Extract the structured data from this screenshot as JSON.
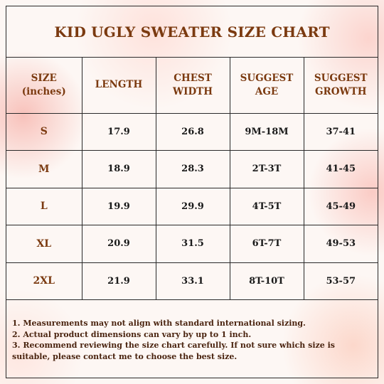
{
  "title": "KID UGLY SWEATER SIZE CHART",
  "header": {
    "size": [
      "SIZE",
      "(inches)"
    ],
    "length": [
      "LENGTH"
    ],
    "chest": [
      "CHEST",
      "WIDTH"
    ],
    "age": [
      "SUGGEST",
      "AGE"
    ],
    "growth": [
      "SUGGEST",
      "GROWTH"
    ]
  },
  "rows": [
    {
      "size": "S",
      "length": "17.9",
      "chest": "26.8",
      "age": "9M-18M",
      "growth": "37-41"
    },
    {
      "size": "M",
      "length": "18.9",
      "chest": "28.3",
      "age": "2T-3T",
      "growth": "41-45"
    },
    {
      "size": "L",
      "length": "19.9",
      "chest": "29.9",
      "age": "4T-5T",
      "growth": "45-49"
    },
    {
      "size": "XL",
      "length": "20.9",
      "chest": "31.5",
      "age": "6T-7T",
      "growth": "49-53"
    },
    {
      "size": "2XL",
      "length": "21.9",
      "chest": "33.1",
      "age": "8T-10T",
      "growth": "53-57"
    }
  ],
  "notes": [
    "1. Measurements may not align with standard international sizing.",
    "2. Actual product dimensions can vary by up to 1 inch.",
    "3. Recommend reviewing the size chart carefully. If not sure which size is suitable, please contact me to choose the best size."
  ],
  "colors": {
    "header_text": "#7b3a10",
    "body_text": "#1a1a1a",
    "border": "#2a2a2a"
  }
}
